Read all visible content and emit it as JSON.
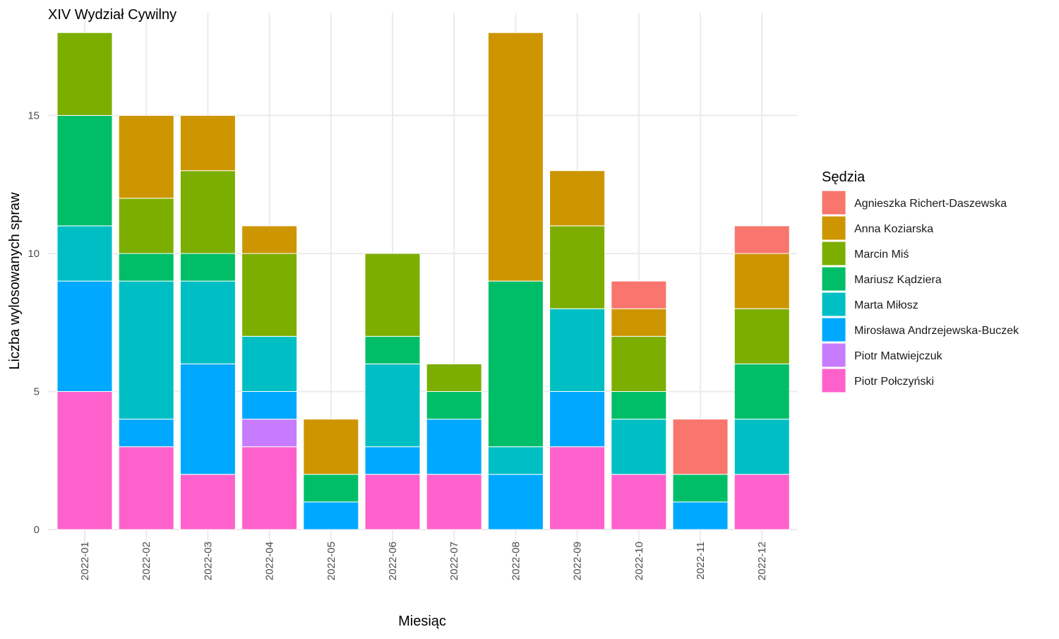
{
  "chart_data": {
    "type": "bar",
    "stacked": true,
    "title": "XIV Wydział Cywilny",
    "xlabel": "Miesiąc",
    "ylabel": "Liczba wylosowanych spraw",
    "ylim": [
      0,
      18
    ],
    "yticks": [
      0,
      5,
      10,
      15
    ],
    "grid": true,
    "legend_title": "Sędzia",
    "legend_position": "right",
    "categories": [
      "2022-01",
      "2022-02",
      "2022-03",
      "2022-04",
      "2022-05",
      "2022-06",
      "2022-07",
      "2022-08",
      "2022-09",
      "2022-10",
      "2022-11",
      "2022-12"
    ],
    "series": [
      {
        "name": "Agnieszka Richert-Daszewska",
        "color": "#F8766D",
        "values": [
          0,
          0,
          0,
          0,
          0,
          0,
          0,
          0,
          0,
          1,
          2,
          1
        ]
      },
      {
        "name": "Anna Koziarska",
        "color": "#CD9600",
        "values": [
          0,
          3,
          2,
          1,
          2,
          0,
          0,
          9,
          2,
          1,
          0,
          2
        ]
      },
      {
        "name": "Marcin Miś",
        "color": "#7CAE00",
        "values": [
          3,
          2,
          3,
          3,
          0,
          3,
          1,
          0,
          3,
          2,
          0,
          2
        ]
      },
      {
        "name": "Mariusz Kądziera",
        "color": "#00BE67",
        "values": [
          4,
          1,
          1,
          0,
          1,
          1,
          1,
          6,
          0,
          1,
          1,
          2
        ]
      },
      {
        "name": "Marta Miłosz",
        "color": "#00BFC4",
        "values": [
          2,
          5,
          3,
          2,
          0,
          3,
          0,
          1,
          3,
          2,
          0,
          2
        ]
      },
      {
        "name": "Mirosława Andrzejewska-Buczek",
        "color": "#00A9FF",
        "values": [
          4,
          1,
          4,
          1,
          1,
          1,
          2,
          2,
          2,
          0,
          1,
          0
        ]
      },
      {
        "name": "Piotr Matwiejczuk",
        "color": "#C77CFF",
        "values": [
          0,
          0,
          0,
          1,
          0,
          0,
          0,
          0,
          0,
          0,
          0,
          0
        ]
      },
      {
        "name": "Piotr Połczyński",
        "color": "#FF61CC",
        "values": [
          5,
          3,
          2,
          3,
          0,
          2,
          2,
          0,
          3,
          2,
          0,
          2
        ]
      }
    ]
  }
}
